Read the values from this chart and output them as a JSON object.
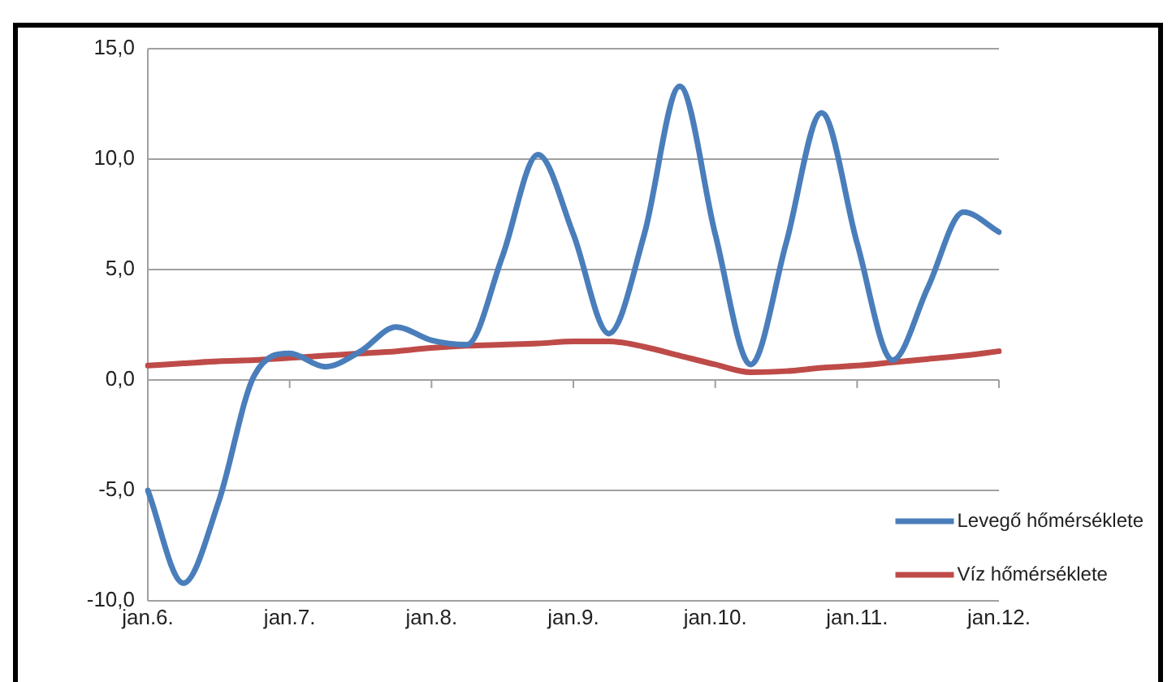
{
  "chart_data": {
    "type": "line",
    "categories": [
      "jan.6.",
      null,
      null,
      null,
      "jan.7.",
      null,
      null,
      null,
      "jan.8.",
      null,
      null,
      null,
      "jan.9.",
      null,
      null,
      null,
      "jan.10.",
      null,
      null,
      null,
      "jan.11.",
      null,
      null,
      null,
      "jan.12."
    ],
    "ylim": [
      -10,
      15
    ],
    "yticks": [
      {
        "value": -10,
        "label": "-10,0"
      },
      {
        "value": -5,
        "label": "-5,0"
      },
      {
        "value": 0,
        "label": "0,0"
      },
      {
        "value": 5,
        "label": "5,0"
      },
      {
        "value": 10,
        "label": "10,0"
      },
      {
        "value": 15,
        "label": "15,0"
      }
    ],
    "series": [
      {
        "name": "Levegő hőmérséklete",
        "color": "#4a7ebb",
        "values": [
          -5.0,
          -9.2,
          -5.5,
          0.2,
          1.2,
          0.6,
          1.3,
          2.4,
          1.8,
          1.6,
          5.6,
          10.2,
          6.6,
          2.1,
          6.6,
          13.3,
          6.6,
          0.7,
          6.2,
          12.1,
          6.2,
          0.9,
          4.2,
          7.6,
          6.7
        ]
      },
      {
        "name": "Víz hőmérséklete",
        "color": "#be4b48",
        "values": [
          0.65,
          0.75,
          0.85,
          0.9,
          1.0,
          1.1,
          1.2,
          1.3,
          1.45,
          1.55,
          1.6,
          1.65,
          1.75,
          1.75,
          1.5,
          1.1,
          0.7,
          0.35,
          0.4,
          0.55,
          0.65,
          0.8,
          0.95,
          1.1,
          1.3
        ]
      }
    ],
    "grid": "y",
    "legend": "bottom right",
    "marker": "none",
    "line_style": "solid"
  }
}
